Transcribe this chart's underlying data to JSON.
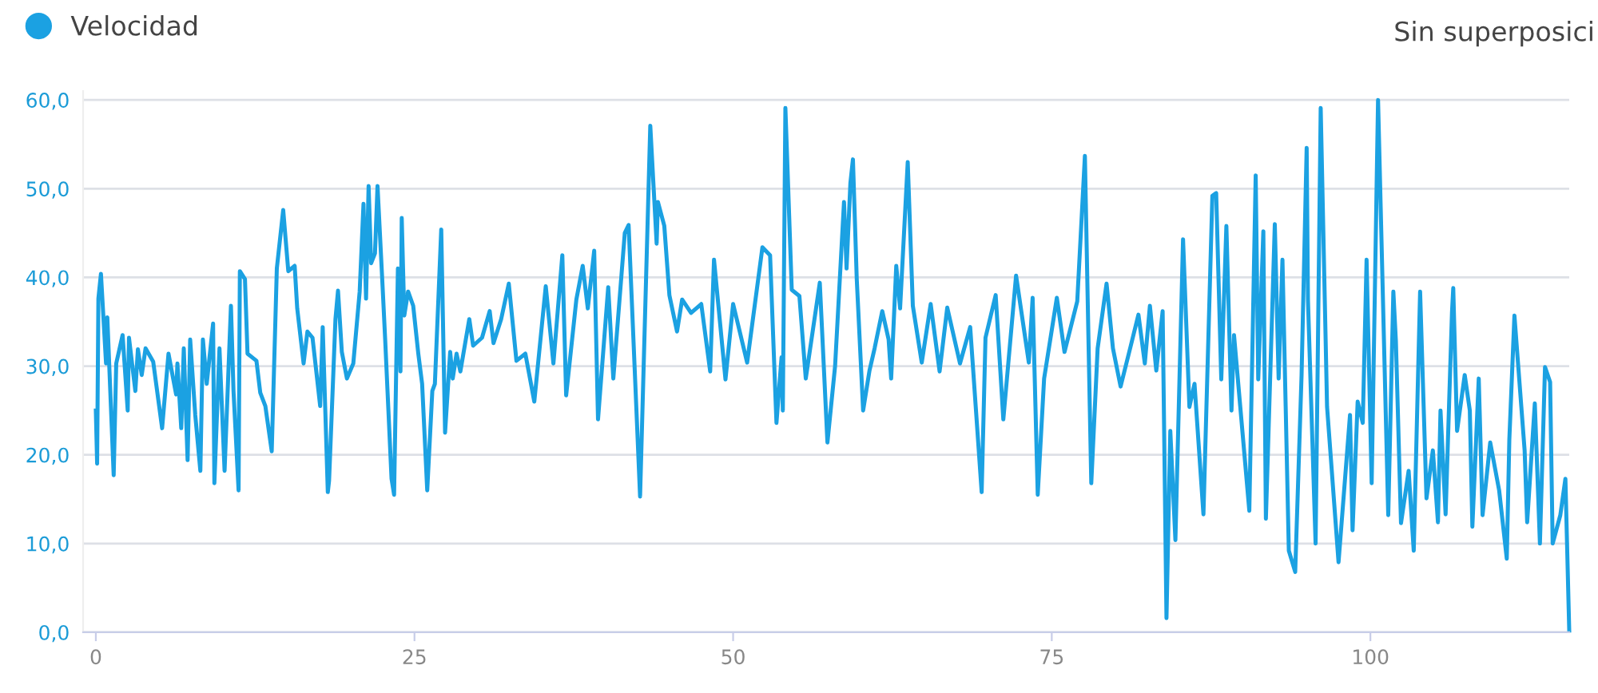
{
  "chart_data": {
    "type": "line",
    "annotations": [
      "Sin superposici"
    ],
    "xlim": [
      -1,
      115.6
    ],
    "xticks": [
      0,
      25,
      50,
      75,
      100
    ],
    "ylim": [
      0,
      61
    ],
    "yticks": [
      {
        "value": 0,
        "label": "0,0"
      },
      {
        "value": 10,
        "label": "10,0"
      },
      {
        "value": 20,
        "label": "20,0"
      },
      {
        "value": 30,
        "label": "30,0"
      },
      {
        "value": 40,
        "label": "40,0"
      },
      {
        "value": 50,
        "label": "50,0"
      },
      {
        "value": 60,
        "label": "60,0"
      }
    ],
    "grid": "y",
    "legend": "top left",
    "marker": "none",
    "line_style": "solid",
    "series": [
      {
        "name": "Velocidad",
        "color": "#1ba1e2",
        "x": [
          0.0,
          0.1,
          0.2,
          0.4,
          0.8,
          0.9,
          1.4,
          1.6,
          2.1,
          2.5,
          2.6,
          3.1,
          3.3,
          3.6,
          3.9,
          4.5,
          5.2,
          5.7,
          6.3,
          6.4,
          6.7,
          6.9,
          7.2,
          7.4,
          7.8,
          8.2,
          8.4,
          8.7,
          9.2,
          9.3,
          9.7,
          10.1,
          10.6,
          10.8,
          11.2,
          11.3,
          11.7,
          11.9,
          12.6,
          12.9,
          13.3,
          13.8,
          14.2,
          14.7,
          15.1,
          15.6,
          15.8,
          16.3,
          16.6,
          17.0,
          17.6,
          17.8,
          18.2,
          18.3,
          18.8,
          19.0,
          19.3,
          19.7,
          20.2,
          20.7,
          21.0,
          21.2,
          21.4,
          21.6,
          21.9,
          22.1,
          22.5,
          22.7,
          23.2,
          23.4,
          23.7,
          23.9,
          24.0,
          24.2,
          24.5,
          24.9,
          25.3,
          25.6,
          26.0,
          26.4,
          26.6,
          27.1,
          27.4,
          27.8,
          28.0,
          28.3,
          28.6,
          29.3,
          29.6,
          30.3,
          30.9,
          31.2,
          31.8,
          32.4,
          33.0,
          33.7,
          34.4,
          35.3,
          35.9,
          36.6,
          36.9,
          37.7,
          38.2,
          38.6,
          39.1,
          39.4,
          40.2,
          40.6,
          41.5,
          41.8,
          42.7,
          43.5,
          44.0,
          44.1,
          44.6,
          45.0,
          45.6,
          46.0,
          46.7,
          47.5,
          48.2,
          48.5,
          49.4,
          50.0,
          51.1,
          52.3,
          52.9,
          53.4,
          53.8,
          53.9,
          54.1,
          54.6,
          55.2,
          55.7,
          56.8,
          57.4,
          58.0,
          58.7,
          58.9,
          59.2,
          59.4,
          59.7,
          60.2,
          60.7,
          61.1,
          61.7,
          62.2,
          62.4,
          62.8,
          63.1,
          63.7,
          64.1,
          64.8,
          65.5,
          66.2,
          66.8,
          67.8,
          68.6,
          69.5,
          69.8,
          70.6,
          71.2,
          72.2,
          73.2,
          73.5,
          73.9,
          74.4,
          75.4,
          76.0,
          77.0,
          77.6,
          78.1,
          78.6,
          79.3,
          79.8,
          80.4,
          81.2,
          81.8,
          82.3,
          82.7,
          83.2,
          83.7,
          84.0,
          84.3,
          84.7,
          85.3,
          85.8,
          86.2,
          86.9,
          87.6,
          87.9,
          88.3,
          88.7,
          89.1,
          89.3,
          90.5,
          91.0,
          91.2,
          91.6,
          91.8,
          92.5,
          92.8,
          93.1,
          93.6,
          94.1,
          94.6,
          95.0,
          95.1,
          95.7,
          96.1,
          96.6,
          97.5,
          98.4,
          98.6,
          99.0,
          99.4,
          99.7,
          100.1,
          100.6,
          101.4,
          101.8,
          102.0,
          102.4,
          103.0,
          103.4,
          103.9,
          104.4,
          104.9,
          105.3,
          105.5,
          105.9,
          106.4,
          106.5,
          106.8,
          107.4,
          107.8,
          108.0,
          108.5,
          108.8,
          109.4,
          110.1,
          110.7,
          110.9,
          111.3,
          112.1,
          112.3,
          112.9,
          113.3,
          113.7,
          114.1,
          114.3,
          114.9,
          115.3,
          115.6
        ],
        "values": [
          25,
          19,
          37.6,
          40.4,
          30.3,
          35.5,
          17.7,
          30.3,
          33.5,
          25,
          33.2,
          27.2,
          31.9,
          29,
          32,
          30.5,
          23,
          31.4,
          26.8,
          30.3,
          23,
          32,
          19.4,
          33,
          24.5,
          18.2,
          33,
          28,
          34.8,
          16.8,
          32,
          18.2,
          36.8,
          27.2,
          16,
          40.7,
          39.8,
          31.4,
          30.6,
          27,
          25.5,
          20.4,
          41,
          47.6,
          40.7,
          41.3,
          36.5,
          30.3,
          33.9,
          33.2,
          25.5,
          34.4,
          15.8,
          17.1,
          35.3,
          38.5,
          31.6,
          28.6,
          30.3,
          38.4,
          48.3,
          37.6,
          50.3,
          41.6,
          42.7,
          50.3,
          38.9,
          33,
          17.3,
          15.5,
          41,
          29.4,
          46.7,
          35.7,
          38.4,
          36.8,
          31.4,
          28,
          16,
          27.2,
          28,
          45.4,
          22.5,
          31.6,
          28.6,
          31.4,
          29.4,
          35.3,
          32.3,
          33.2,
          36.2,
          32.6,
          35.3,
          39.3,
          30.6,
          31.4,
          26,
          39,
          30.3,
          42.5,
          26.7,
          37.5,
          41.3,
          36.5,
          43,
          24,
          38.9,
          28.6,
          45,
          45.9,
          15.3,
          57.1,
          43.8,
          48.5,
          45.8,
          38,
          33.9,
          37.5,
          36,
          37,
          29.4,
          42,
          28.5,
          37,
          30.4,
          43.4,
          42.5,
          23.6,
          31,
          25,
          59.1,
          38.6,
          37.9,
          28.6,
          39.4,
          21.4,
          30,
          48.5,
          41,
          50.6,
          53.3,
          39.8,
          25,
          29.5,
          32,
          36.2,
          33,
          28.6,
          41.3,
          36.5,
          53,
          36.8,
          30.4,
          37,
          29.4,
          36.6,
          30.3,
          34.4,
          15.8,
          33.2,
          38,
          24,
          40.2,
          30.4,
          37.7,
          15.5,
          28.6,
          37.7,
          31.6,
          37.3,
          53.7,
          16.8,
          32,
          39.3,
          32,
          27.7,
          32.3,
          35.8,
          30.3,
          36.8,
          29.5,
          36.2,
          1.6,
          22.7,
          10.4,
          44.3,
          25.4,
          28,
          13.3,
          49.2,
          49.5,
          28.5,
          45.8,
          25,
          33.5,
          13.7,
          51.5,
          28.5,
          45.2,
          12.8,
          46,
          28.6,
          42,
          9.2,
          6.8,
          29,
          54.6,
          37.5,
          10,
          59.1,
          25.4,
          7.9,
          24.5,
          11.5,
          26,
          23.6,
          42,
          16.8,
          60,
          13.2,
          38.4,
          32.8,
          12.3,
          18.2,
          9.2,
          38.4,
          15.1,
          20.5,
          12.4,
          25,
          13.3,
          36,
          38.8,
          22.7,
          29,
          25,
          11.9,
          28.6,
          13.2,
          21.4,
          16,
          8.3,
          21.7,
          35.7,
          20.5,
          12.4,
          25.8,
          10,
          29.9,
          28.2,
          10,
          13.2,
          17.3,
          0.2
        ]
      }
    ]
  }
}
